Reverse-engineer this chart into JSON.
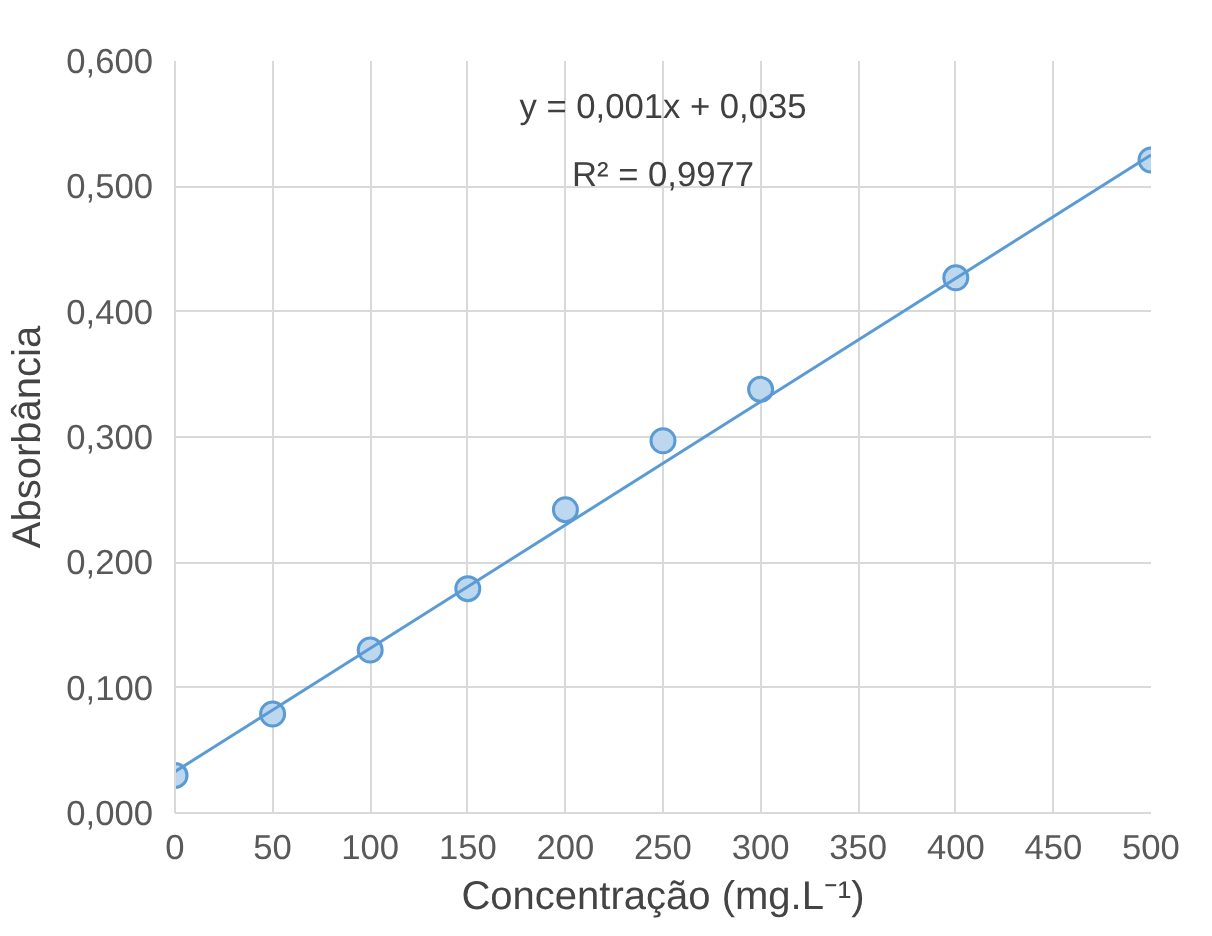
{
  "chart_data": {
    "type": "scatter",
    "xlabel": "Concentração (mg.L⁻¹)",
    "ylabel": "Absorbância",
    "annotations": [
      "y = 0,001x + 0,035",
      "R² = 0,9977"
    ],
    "series": [
      {
        "marker": "circle",
        "color": "#5b9bd5",
        "x": [
          0,
          50,
          100,
          150,
          200,
          250,
          300,
          400,
          500
        ],
        "values": [
          0.03,
          0.079,
          0.13,
          0.179,
          0.242,
          0.297,
          0.338,
          0.427,
          0.521
        ]
      },
      {
        "type": "line",
        "color": "#5b9bd5",
        "x": [
          0,
          500
        ],
        "values": [
          0.033,
          0.525
        ]
      }
    ],
    "xlim": [
      0,
      500
    ],
    "xticks": [
      0,
      50,
      100,
      150,
      200,
      250,
      300,
      350,
      400,
      450,
      500
    ],
    "ylim": [
      0,
      0.6
    ],
    "yticks": [
      {
        "value": 0,
        "label": "0,000"
      },
      {
        "value": 0.1,
        "label": "0,100"
      },
      {
        "value": 0.2,
        "label": "0,200"
      },
      {
        "value": 0.3,
        "label": "0,300"
      },
      {
        "value": 0.4,
        "label": "0,400"
      },
      {
        "value": 0.5,
        "label": "0,500"
      },
      {
        "value": 0.6,
        "label": "0,600"
      }
    ],
    "grid": true
  }
}
